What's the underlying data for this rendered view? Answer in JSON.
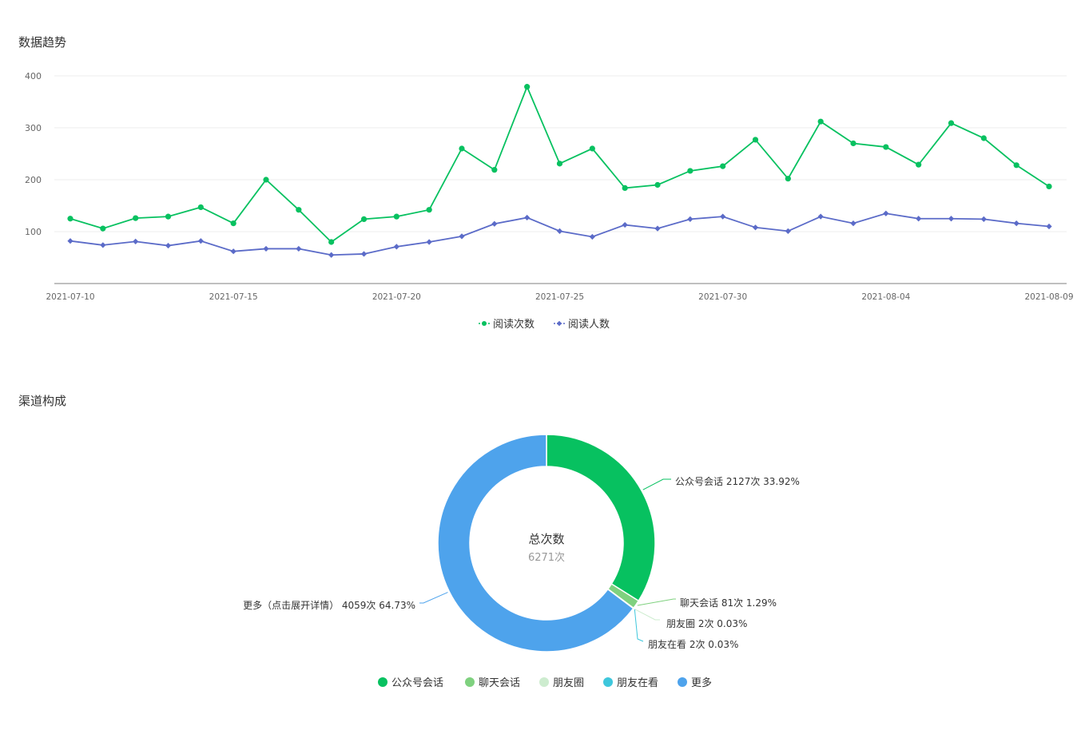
{
  "trend_section": {
    "title": "数据趋势"
  },
  "channel_section": {
    "title": "渠道构成"
  },
  "chart_data": [
    {
      "type": "line",
      "ylim": [
        0,
        400
      ],
      "yticks": [
        100,
        200,
        300,
        400
      ],
      "grid": true,
      "legend_position": "bottom-center",
      "xtick_labels": [
        "2021-07-10",
        "2021-07-15",
        "2021-07-20",
        "2021-07-25",
        "2021-07-30",
        "2021-08-04",
        "2021-08-09"
      ],
      "x": [
        "2021-07-10",
        "2021-07-11",
        "2021-07-12",
        "2021-07-13",
        "2021-07-14",
        "2021-07-15",
        "2021-07-16",
        "2021-07-17",
        "2021-07-18",
        "2021-07-19",
        "2021-07-20",
        "2021-07-21",
        "2021-07-22",
        "2021-07-23",
        "2021-07-24",
        "2021-07-25",
        "2021-07-26",
        "2021-07-27",
        "2021-07-28",
        "2021-07-29",
        "2021-07-30",
        "2021-07-31",
        "2021-08-01",
        "2021-08-02",
        "2021-08-03",
        "2021-08-04",
        "2021-08-05",
        "2021-08-06",
        "2021-08-07",
        "2021-08-08",
        "2021-08-09"
      ],
      "series": [
        {
          "name": "阅读次数",
          "color": "#07c160",
          "marker": "circle",
          "values": [
            125,
            106,
            126,
            129,
            147,
            116,
            200,
            142,
            80,
            124,
            129,
            142,
            260,
            219,
            379,
            231,
            260,
            184,
            190,
            217,
            226,
            277,
            202,
            312,
            270,
            263,
            229,
            309,
            280,
            228,
            187
          ]
        },
        {
          "name": "阅读人数",
          "color": "#5b6bc8",
          "marker": "diamond",
          "values": [
            82,
            74,
            81,
            73,
            82,
            62,
            67,
            67,
            55,
            57,
            71,
            80,
            91,
            115,
            127,
            101,
            90,
            113,
            106,
            124,
            129,
            108,
            101,
            129,
            116,
            135,
            125,
            125,
            124,
            116,
            110
          ]
        }
      ]
    },
    {
      "type": "pie",
      "style": "donut",
      "center_title": "总次数",
      "center_value": "6271次",
      "slices": [
        {
          "name": "公众号会话",
          "value": 2127,
          "percent": 33.92,
          "color": "#07c160",
          "label": "公众号会话 2127次 33.92%"
        },
        {
          "name": "聊天会话",
          "value": 81,
          "percent": 1.29,
          "color": "#7fd17f",
          "label": "聊天会话 81次 1.29%"
        },
        {
          "name": "朋友圈",
          "value": 2,
          "percent": 0.03,
          "color": "#cdeccf",
          "label": "朋友圈 2次 0.03%"
        },
        {
          "name": "朋友在看",
          "value": 2,
          "percent": 0.03,
          "color": "#3ec7dc",
          "label": "朋友在看 2次 0.03%"
        },
        {
          "name": "更多",
          "value": 4059,
          "percent": 64.73,
          "color": "#4ea3ec",
          "label": "更多（点击展开详情） 4059次 64.73%"
        }
      ],
      "legend_position": "bottom-center",
      "legend": [
        "公众号会话",
        "聊天会话",
        "朋友圈",
        "朋友在看",
        "更多"
      ]
    }
  ]
}
